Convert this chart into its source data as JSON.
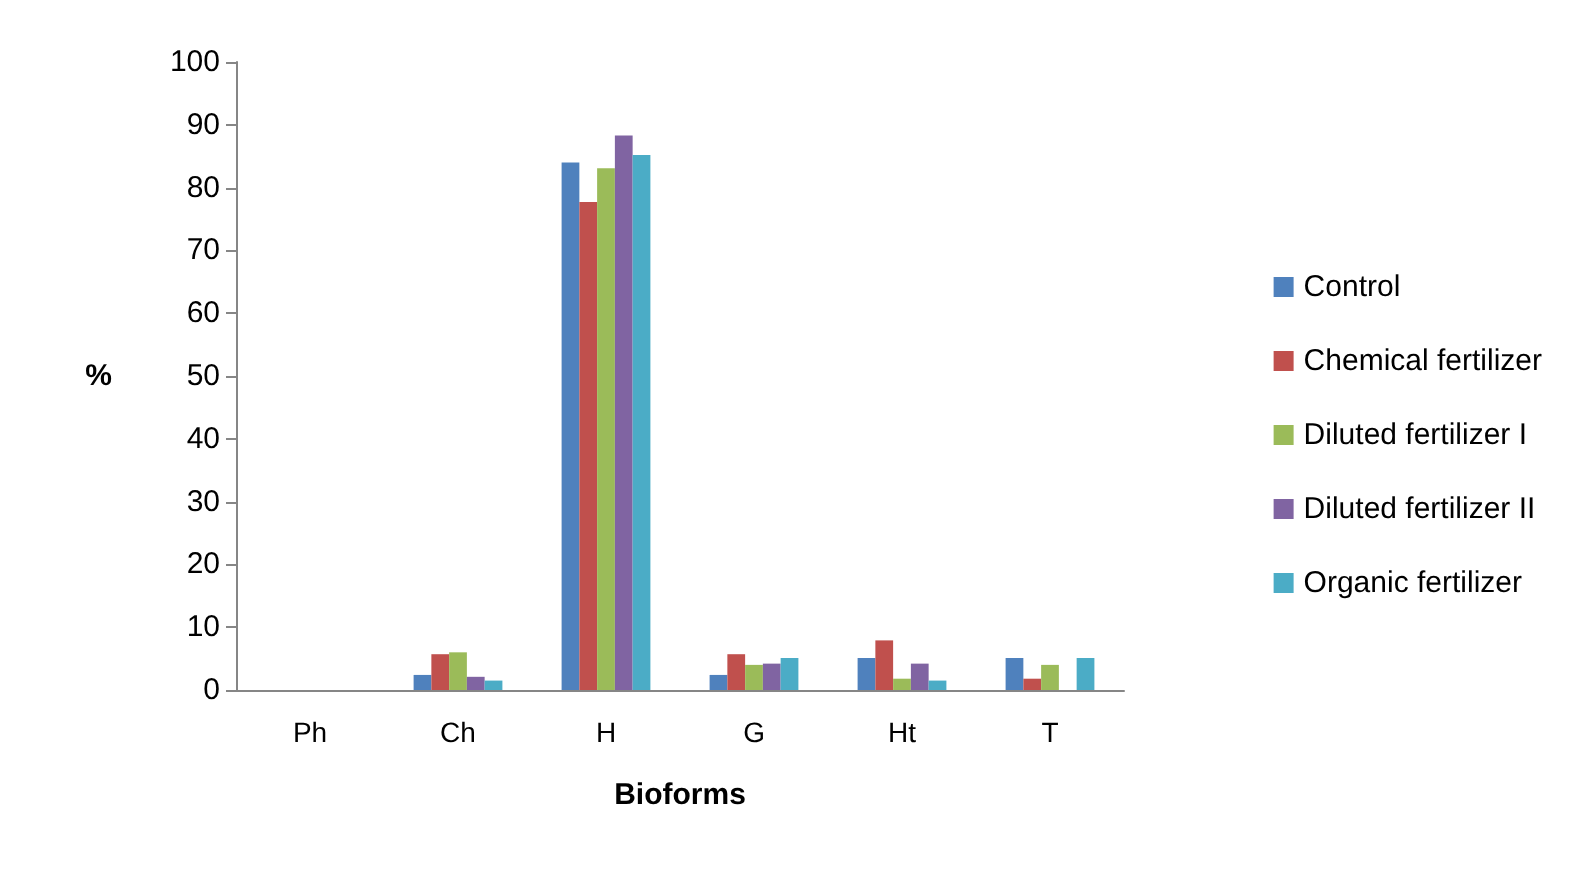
{
  "chart_data": {
    "type": "bar",
    "xlabel": "Bioforms",
    "ylabel": "%",
    "categories": [
      "Ph",
      "Ch",
      "H",
      "G",
      "Ht",
      "T"
    ],
    "series": [
      {
        "name": "Control",
        "color": "#4f81bd",
        "values": [
          0,
          2.4,
          84.0,
          2.4,
          5.1,
          5.1
        ]
      },
      {
        "name": "Chemical fertilizer",
        "color": "#c0504d",
        "values": [
          0,
          5.7,
          77.7,
          5.7,
          7.9,
          1.8
        ]
      },
      {
        "name": "Diluted fertilizer I",
        "color": "#9bbb59",
        "values": [
          0,
          6.0,
          83.1,
          4.0,
          1.8,
          4.0
        ]
      },
      {
        "name": "Diluted fertilizer II",
        "color": "#8064a2",
        "values": [
          0,
          2.1,
          88.3,
          4.2,
          4.2,
          0
        ]
      },
      {
        "name": "Organic fertilizer",
        "color": "#4bacc6",
        "values": [
          0,
          1.5,
          85.2,
          5.1,
          1.5,
          5.1
        ]
      }
    ],
    "ylim": [
      0,
      100
    ],
    "yticks": [
      0,
      10,
      20,
      30,
      40,
      50,
      60,
      70,
      80,
      90,
      100
    ],
    "grid": false,
    "legend": "right"
  }
}
